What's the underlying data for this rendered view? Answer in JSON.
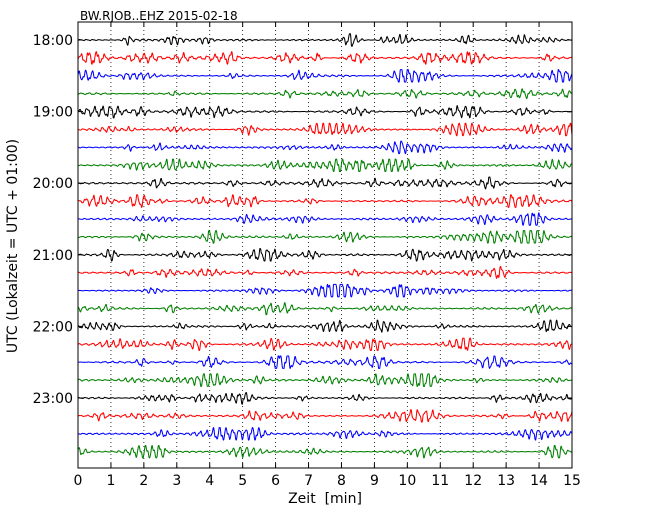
{
  "chart_data": {
    "type": "line",
    "title": "BW.RJOB..EHZ 2015-02-18",
    "xlabel": "Zeit  [min]",
    "ylabel": "UTC (Lokalzeit = UTC + 01:00)",
    "xlim": [
      0,
      15
    ],
    "x_ticks": [
      0,
      1,
      2,
      3,
      4,
      5,
      6,
      7,
      8,
      9,
      10,
      11,
      12,
      13,
      14,
      15
    ],
    "x_tick_labels": [
      "0",
      "1",
      "2",
      "3",
      "4",
      "5",
      "6",
      "7",
      "8",
      "9",
      "10",
      "11",
      "12",
      "13",
      "14",
      "15"
    ],
    "y_tick_labels": [
      "18:00",
      "19:00",
      "20:00",
      "21:00",
      "22:00",
      "23:00"
    ],
    "y_tick_hours": [
      18,
      19,
      20,
      21,
      22,
      23
    ],
    "trace_interval_minutes": 15,
    "start_time": "18:00",
    "vertical_grid": "dotted at each minute",
    "series": [
      {
        "start": "18:00",
        "color": "#000000"
      },
      {
        "start": "18:15",
        "color": "#ff0000"
      },
      {
        "start": "18:30",
        "color": "#0000ff"
      },
      {
        "start": "18:45",
        "color": "#008000"
      },
      {
        "start": "19:00",
        "color": "#000000"
      },
      {
        "start": "19:15",
        "color": "#ff0000"
      },
      {
        "start": "19:30",
        "color": "#0000ff"
      },
      {
        "start": "19:45",
        "color": "#008000"
      },
      {
        "start": "20:00",
        "color": "#000000"
      },
      {
        "start": "20:15",
        "color": "#ff0000"
      },
      {
        "start": "20:30",
        "color": "#0000ff"
      },
      {
        "start": "20:45",
        "color": "#008000"
      },
      {
        "start": "21:00",
        "color": "#000000"
      },
      {
        "start": "21:15",
        "color": "#ff0000"
      },
      {
        "start": "21:30",
        "color": "#0000ff"
      },
      {
        "start": "21:45",
        "color": "#008000"
      },
      {
        "start": "22:00",
        "color": "#000000"
      },
      {
        "start": "22:15",
        "color": "#ff0000"
      },
      {
        "start": "22:30",
        "color": "#0000ff"
      },
      {
        "start": "22:45",
        "color": "#008000"
      },
      {
        "start": "23:00",
        "color": "#000000"
      },
      {
        "start": "23:15",
        "color": "#ff0000"
      },
      {
        "start": "23:30",
        "color": "#0000ff"
      },
      {
        "start": "23:45",
        "color": "#008000"
      }
    ]
  }
}
